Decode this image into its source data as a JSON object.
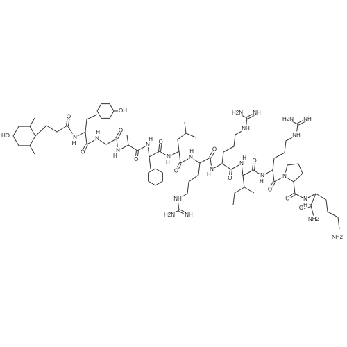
{
  "structure": {
    "atoms": [
      "HO",
      "O",
      "O",
      "O",
      "O",
      "O",
      "O",
      "O",
      "O",
      "O",
      "O",
      "O",
      "N",
      "H",
      "N",
      "H",
      "N",
      "H",
      "N",
      "H",
      "N",
      "H",
      "N",
      "H",
      "N",
      "H",
      "N",
      "H",
      "N",
      "H",
      "N",
      "N",
      "H",
      "OH",
      "NH",
      "NH",
      "H2N",
      "NH",
      "NH",
      "H2N",
      "NH",
      "NH",
      "H2N",
      "O",
      "NH2",
      "NH2"
    ]
  }
}
